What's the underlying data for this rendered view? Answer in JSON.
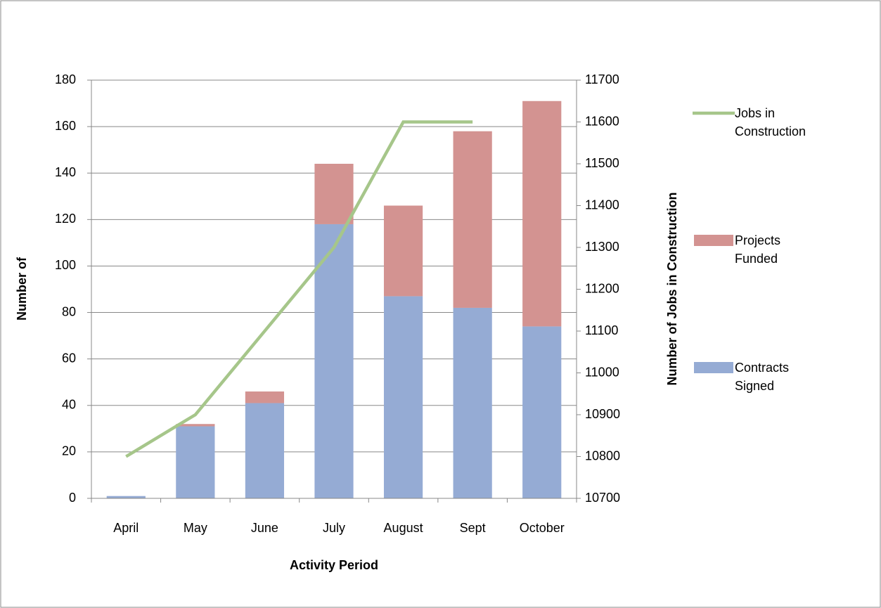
{
  "chart_data": {
    "type": "bar",
    "categories": [
      "April",
      "May",
      "June",
      "July",
      "August",
      "Sept",
      "October"
    ],
    "series": [
      {
        "name": "Contracts Signed",
        "color": "#95abd4",
        "values": [
          1,
          31,
          41,
          118,
          87,
          82,
          74
        ]
      },
      {
        "name": "Projects Funded",
        "color": "#d39391",
        "values": [
          0,
          1,
          5,
          26,
          39,
          76,
          97
        ]
      },
      {
        "name": "Jobs in Construction",
        "color": "#a6c68a",
        "type": "line",
        "axis": "y2",
        "values": [
          10800,
          10900,
          11100,
          11300,
          11600,
          11600,
          null
        ]
      }
    ],
    "stacked": true,
    "x_label": "Activity Period",
    "y_label": "Number of",
    "y2_label": "Number of Jobs in Construction",
    "ylim": [
      0,
      180
    ],
    "yticks": [
      0,
      20,
      40,
      60,
      80,
      100,
      120,
      140,
      160,
      180
    ],
    "y2lim": [
      10700,
      11700
    ],
    "y2ticks": [
      10700,
      10800,
      10900,
      11000,
      11100,
      11200,
      11300,
      11400,
      11500,
      11600,
      11700
    ],
    "grid": true,
    "legend": "right"
  }
}
